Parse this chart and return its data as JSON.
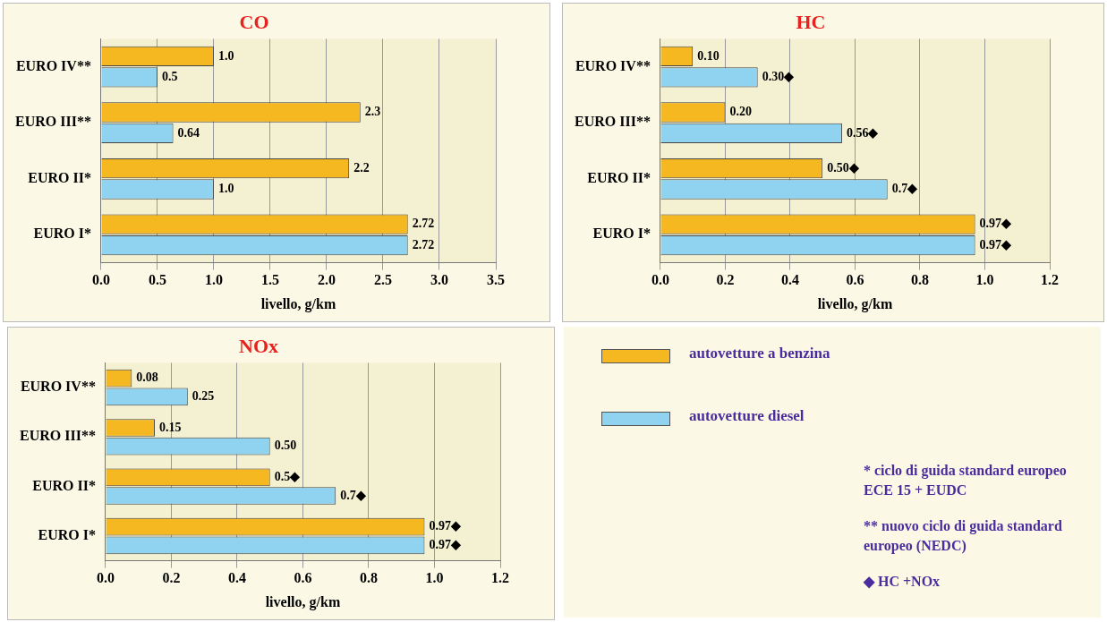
{
  "chart_data": [
    {
      "type": "bar",
      "title": "CO",
      "xlabel": "livello, g/km",
      "orientation": "horizontal",
      "categories": [
        "EURO IV**",
        "EURO III**",
        "EURO II*",
        "EURO I*"
      ],
      "xlim": [
        0,
        3.5
      ],
      "xticks": [
        {
          "value": 0,
          "label": "0.0"
        },
        0.5,
        {
          "value": 1,
          "label": "1.0"
        },
        1.5,
        {
          "value": 2,
          "label": "2.0"
        },
        2.5,
        {
          "value": 3,
          "label": "3.0"
        },
        3.5
      ],
      "grid": "x",
      "series": [
        {
          "color": "#f5b820",
          "values": [
            1.0,
            2.3,
            2.2,
            2.72
          ],
          "value_labels": [
            "1.0",
            "2.3",
            "2.2",
            "2.72"
          ]
        },
        {
          "color": "#8fd3f0",
          "values": [
            0.5,
            0.64,
            1.0,
            2.72
          ],
          "value_labels": [
            "0.5",
            "0.64",
            "1.0",
            "2.72"
          ]
        }
      ]
    },
    {
      "type": "bar",
      "title": "HC",
      "xlabel": "livello, g/km",
      "orientation": "horizontal",
      "categories": [
        "EURO IV**",
        "EURO III**",
        "EURO II*",
        "EURO I*"
      ],
      "xlim": [
        0,
        1.2
      ],
      "xticks": [
        {
          "value": 0,
          "label": "0.0"
        },
        0.2,
        0.4,
        0.6,
        0.8,
        {
          "value": 1,
          "label": "1.0"
        },
        1.2
      ],
      "grid": "x",
      "series": [
        {
          "color": "#f5b820",
          "values": [
            0.1,
            0.2,
            0.5,
            0.97
          ],
          "value_labels": [
            "0.10",
            "0.20",
            "0.50◆",
            "0.97◆"
          ]
        },
        {
          "color": "#8fd3f0",
          "values": [
            0.3,
            0.56,
            0.7,
            0.97
          ],
          "value_labels": [
            "0.30◆",
            "0.56◆",
            "0.7◆",
            "0.97◆"
          ]
        }
      ]
    },
    {
      "type": "bar",
      "title": "NOx",
      "xlabel": "livello, g/km",
      "orientation": "horizontal",
      "categories": [
        "EURO IV**",
        "EURO III**",
        "EURO II*",
        "EURO I*"
      ],
      "xlim": [
        0,
        1.2
      ],
      "xticks": [
        {
          "value": 0,
          "label": "0.0"
        },
        0.2,
        0.4,
        0.6,
        0.8,
        {
          "value": 1,
          "label": "1.0"
        },
        1.2
      ],
      "grid": "x",
      "legend": "right",
      "annotations": [
        "* ciclo di guida standard europeo ECE 15 + EUDC",
        "** nuovo ciclo di guida standard europeo (NEDC)",
        "◆ HC +NOx"
      ],
      "series": [
        {
          "name": "autovetture a benzina",
          "color": "#f5b820",
          "values": [
            0.08,
            0.15,
            0.5,
            0.97
          ],
          "value_labels": [
            "0.08",
            "0.15",
            "0.5◆",
            "0.97◆"
          ]
        },
        {
          "name": "autovetture diesel",
          "color": "#8fd3f0",
          "values": [
            0.25,
            0.5,
            0.7,
            0.97
          ],
          "value_labels": [
            "0.25",
            "0.50",
            "0.7◆",
            "0.97◆"
          ]
        }
      ]
    }
  ]
}
